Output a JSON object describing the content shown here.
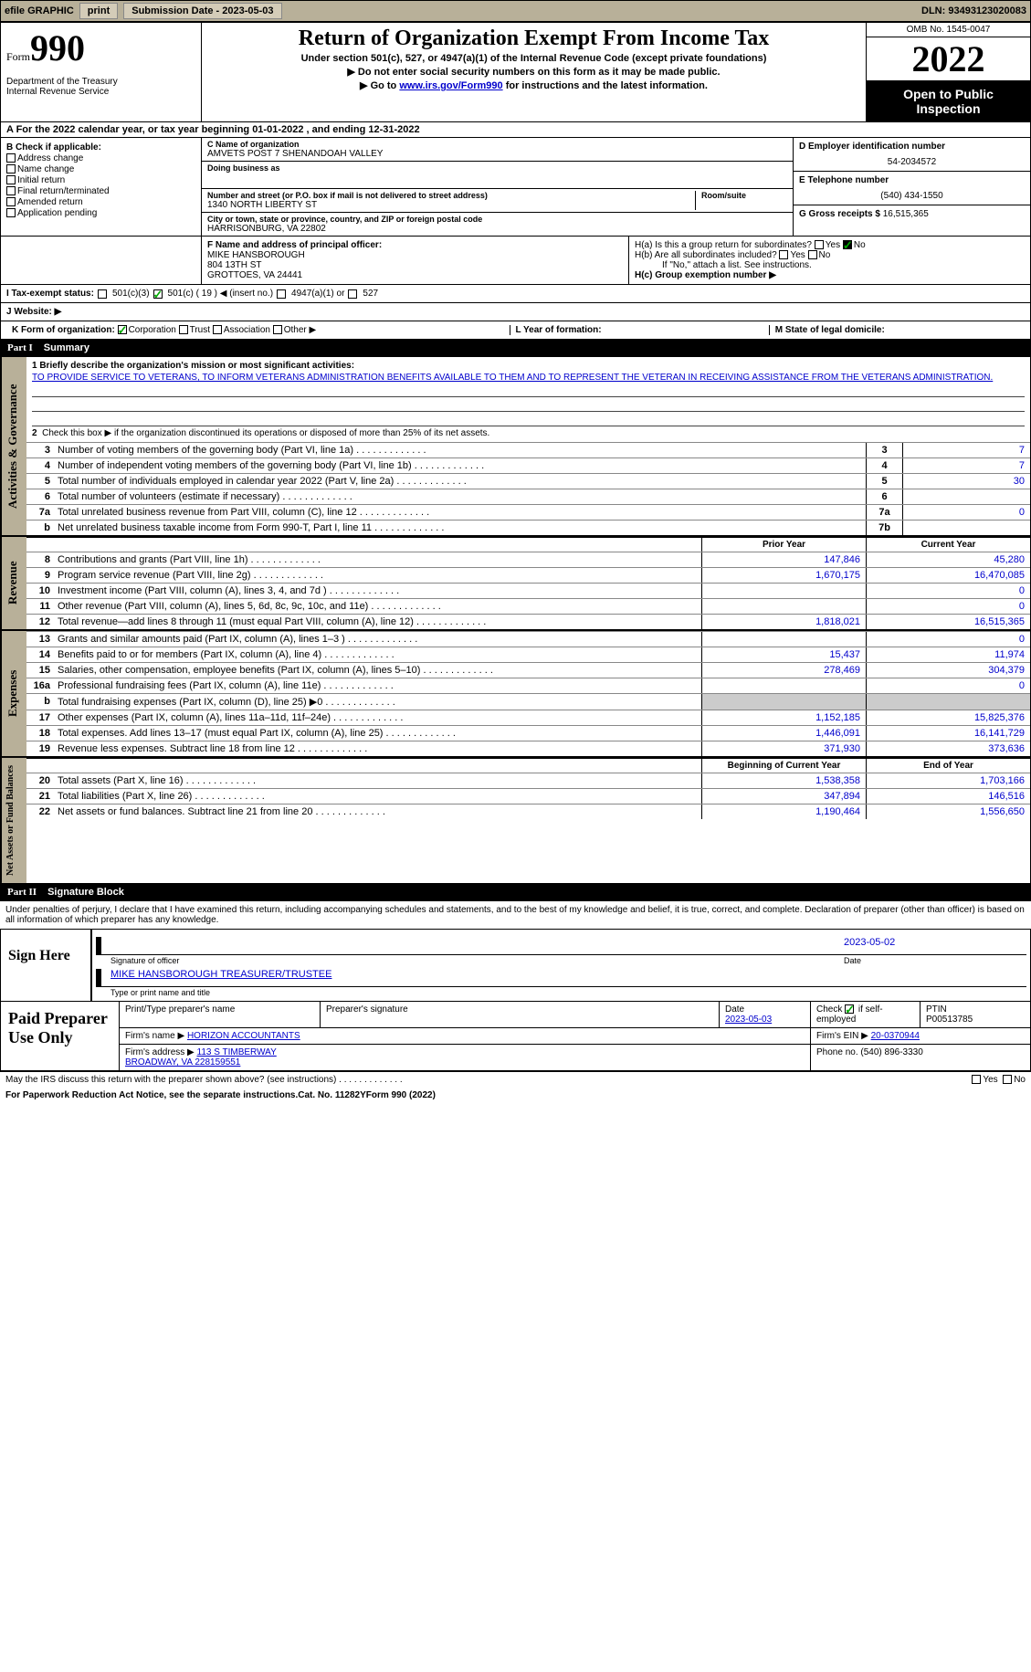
{
  "topbar": {
    "efile": "efile GRAPHIC",
    "print": "print",
    "sub_label": "Submission Date - 2023-05-03",
    "dln": "DLN: 93493123020083"
  },
  "header": {
    "form_label": "Form",
    "form_num": "990",
    "title": "Return of Organization Exempt From Income Tax",
    "subtitle1": "Under section 501(c), 527, or 4947(a)(1) of the Internal Revenue Code (except private foundations)",
    "subtitle2": "▶ Do not enter social security numbers on this form as it may be made public.",
    "subtitle3_pre": "▶ Go to ",
    "subtitle3_link": "www.irs.gov/Form990",
    "subtitle3_post": " for instructions and the latest information.",
    "dept": "Department of the Treasury\nInternal Revenue Service",
    "omb": "OMB No. 1545-0047",
    "year": "2022",
    "open": "Open to Public Inspection"
  },
  "period": "A For the 2022 calendar year, or tax year beginning 01-01-2022    , and ending 12-31-2022",
  "colB": {
    "label": "B Check if applicable:",
    "items": [
      "Address change",
      "Name change",
      "Initial return",
      "Final return/terminated",
      "Amended return",
      "Application pending"
    ]
  },
  "nameBox": {
    "c_label": "C Name of organization",
    "c_val": "AMVETS POST 7 SHENANDOAH VALLEY",
    "dba_label": "Doing business as",
    "dba_val": "",
    "addr_label": "Number and street (or P.O. box if mail is not delivered to street address)",
    "addr_val": "1340 NORTH LIBERTY ST",
    "room_label": "Room/suite",
    "city_label": "City or town, state or province, country, and ZIP or foreign postal code",
    "city_val": "HARRISONBURG, VA  22802"
  },
  "colD": {
    "ein_label": "D Employer identification number",
    "ein": "54-2034572",
    "phone_label": "E Telephone number",
    "phone": "(540) 434-1550",
    "gross_label": "G Gross receipts $",
    "gross": "16,515,365"
  },
  "officer": {
    "label": "F  Name and address of principal officer:",
    "name": "MIKE HANSBOROUGH",
    "addr1": "804 13TH ST",
    "addr2": "GROTTOES, VA  24441"
  },
  "hSection": {
    "ha": "H(a)  Is this a group return for subordinates?",
    "hb": "H(b)  Are all subordinates included?",
    "hb_note": "If \"No,\" attach a list. See instructions.",
    "hc": "H(c)  Group exemption number ▶",
    "yes": "Yes",
    "no": "No"
  },
  "taxStatus": {
    "label": "I  Tax-exempt status:",
    "opts": [
      "501(c)(3)",
      "501(c) ( 19 ) ◀ (insert no.)",
      "4947(a)(1) or",
      "527"
    ]
  },
  "website": {
    "label": "J  Website: ▶"
  },
  "formOrg": {
    "k": "K Form of organization:",
    "opts": [
      "Corporation",
      "Trust",
      "Association",
      "Other ▶"
    ],
    "l": "L Year of formation:",
    "m": "M State of legal domicile:"
  },
  "part1": {
    "num": "Part I",
    "title": "Summary",
    "q1_label": "1  Briefly describe the organization's mission or most significant activities:",
    "q1_text": "TO PROVIDE SERVICE TO VETERANS, TO INFORM VETERANS ADMINISTRATION BENEFITS AVAILABLE TO THEM AND TO REPRESENT THE VETERAN IN RECEIVING ASSISTANCE FROM THE VETERANS ADMINISTRATION.",
    "q2": "Check this box ▶       if the organization discontinued its operations or disposed of more than 25% of its net assets.",
    "rows_gov": [
      {
        "n": "3",
        "d": "Number of voting members of the governing body (Part VI, line 1a)",
        "box": "3",
        "v": "7"
      },
      {
        "n": "4",
        "d": "Number of independent voting members of the governing body (Part VI, line 1b)",
        "box": "4",
        "v": "7"
      },
      {
        "n": "5",
        "d": "Total number of individuals employed in calendar year 2022 (Part V, line 2a)",
        "box": "5",
        "v": "30"
      },
      {
        "n": "6",
        "d": "Total number of volunteers (estimate if necessary)",
        "box": "6",
        "v": ""
      },
      {
        "n": "7a",
        "d": "Total unrelated business revenue from Part VIII, column (C), line 12",
        "box": "7a",
        "v": "0"
      },
      {
        "n": "b",
        "d": "Net unrelated business taxable income from Form 990-T, Part I, line 11",
        "box": "7b",
        "v": ""
      }
    ],
    "year_prior": "Prior Year",
    "year_current": "Current Year",
    "revenue": [
      {
        "n": "8",
        "d": "Contributions and grants (Part VIII, line 1h)",
        "p": "147,846",
        "c": "45,280"
      },
      {
        "n": "9",
        "d": "Program service revenue (Part VIII, line 2g)",
        "p": "1,670,175",
        "c": "16,470,085"
      },
      {
        "n": "10",
        "d": "Investment income (Part VIII, column (A), lines 3, 4, and 7d )",
        "p": "",
        "c": "0"
      },
      {
        "n": "11",
        "d": "Other revenue (Part VIII, column (A), lines 5, 6d, 8c, 9c, 10c, and 11e)",
        "p": "",
        "c": "0"
      },
      {
        "n": "12",
        "d": "Total revenue—add lines 8 through 11 (must equal Part VIII, column (A), line 12)",
        "p": "1,818,021",
        "c": "16,515,365"
      }
    ],
    "expenses": [
      {
        "n": "13",
        "d": "Grants and similar amounts paid (Part IX, column (A), lines 1–3 )",
        "p": "",
        "c": "0"
      },
      {
        "n": "14",
        "d": "Benefits paid to or for members (Part IX, column (A), line 4)",
        "p": "15,437",
        "c": "11,974"
      },
      {
        "n": "15",
        "d": "Salaries, other compensation, employee benefits (Part IX, column (A), lines 5–10)",
        "p": "278,469",
        "c": "304,379"
      },
      {
        "n": "16a",
        "d": "Professional fundraising fees (Part IX, column (A), line 11e)",
        "p": "",
        "c": "0"
      },
      {
        "n": "b",
        "d": "Total fundraising expenses (Part IX, column (D), line 25) ▶0",
        "p": "SHADE",
        "c": "SHADE"
      },
      {
        "n": "17",
        "d": "Other expenses (Part IX, column (A), lines 11a–11d, 11f–24e)",
        "p": "1,152,185",
        "c": "15,825,376"
      },
      {
        "n": "18",
        "d": "Total expenses. Add lines 13–17 (must equal Part IX, column (A), line 25)",
        "p": "1,446,091",
        "c": "16,141,729"
      },
      {
        "n": "19",
        "d": "Revenue less expenses. Subtract line 18 from line 12",
        "p": "371,930",
        "c": "373,636"
      }
    ],
    "net_header_prior": "Beginning of Current Year",
    "net_header_current": "End of Year",
    "net": [
      {
        "n": "20",
        "d": "Total assets (Part X, line 16)",
        "p": "1,538,358",
        "c": "1,703,166"
      },
      {
        "n": "21",
        "d": "Total liabilities (Part X, line 26)",
        "p": "347,894",
        "c": "146,516"
      },
      {
        "n": "22",
        "d": "Net assets or fund balances. Subtract line 21 from line 20",
        "p": "1,190,464",
        "c": "1,556,650"
      }
    ],
    "vtabs": [
      "Activities & Governance",
      "Revenue",
      "Expenses",
      "Net Assets or Fund Balances"
    ]
  },
  "part2": {
    "num": "Part II",
    "title": "Signature Block",
    "decl": "Under penalties of perjury, I declare that I have examined this return, including accompanying schedules and statements, and to the best of my knowledge and belief, it is true, correct, and complete. Declaration of preparer (other than officer) is based on all information of which preparer has any knowledge.",
    "sign_here": "Sign Here",
    "sig_officer": "Signature of officer",
    "sig_date": "2023-05-02",
    "printed": "MIKE HANSBOROUGH  TREASURER/TRUSTEE",
    "printed_label": "Type or print name and title",
    "paid": "Paid Preparer Use Only",
    "prep_name_label": "Print/Type preparer's name",
    "prep_sig_label": "Preparer's signature",
    "prep_date_label": "Date",
    "prep_date": "2023-05-03",
    "check_if": "Check          if self-employed",
    "ptin_label": "PTIN",
    "ptin": "P00513785",
    "firm_name_label": "Firm's name      ▶",
    "firm_name": "HORIZON ACCOUNTANTS",
    "firm_ein_label": "Firm's EIN ▶",
    "firm_ein": "20-0370944",
    "firm_addr_label": "Firm's address ▶",
    "firm_addr": "113 S TIMBERWAY\nBROADWAY, VA  228159551",
    "firm_phone_label": "Phone no.",
    "firm_phone": "(540) 896-3330",
    "discuss": "May the IRS discuss this return with the preparer shown above? (see instructions)",
    "footer_left": "For Paperwork Reduction Act Notice, see the separate instructions.",
    "footer_mid": "Cat. No. 11282Y",
    "footer_right": "Form 990 (2022)"
  }
}
